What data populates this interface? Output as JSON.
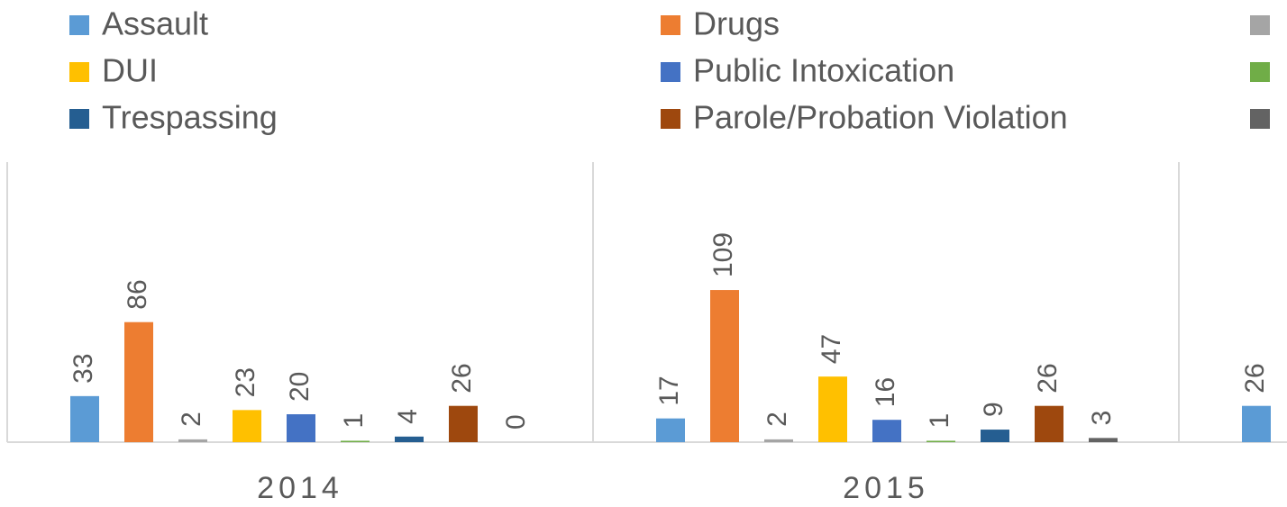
{
  "chart_data": {
    "type": "bar",
    "categories": [
      "2014",
      "2015",
      null
    ],
    "series": [
      {
        "name": "Assault",
        "color": "#5b9bd5",
        "values": [
          33,
          17,
          26
        ]
      },
      {
        "name": "Drugs",
        "color": "#ed7d31",
        "values": [
          86,
          109,
          null
        ]
      },
      {
        "name": null,
        "color": "#a5a5a5",
        "values": [
          2,
          2,
          null
        ]
      },
      {
        "name": "DUI",
        "color": "#ffc000",
        "values": [
          23,
          47,
          null
        ]
      },
      {
        "name": "Public Intoxication",
        "color": "#4472c4",
        "values": [
          20,
          16,
          null
        ]
      },
      {
        "name": null,
        "color": "#70ad47",
        "values": [
          1,
          1,
          null
        ]
      },
      {
        "name": "Trespassing",
        "color": "#255e91",
        "values": [
          4,
          9,
          null
        ]
      },
      {
        "name": "Parole/Probation Violation",
        "color": "#9e480e",
        "values": [
          26,
          26,
          null
        ]
      },
      {
        "name": null,
        "color": "#636363",
        "values": [
          0,
          3,
          null
        ]
      }
    ],
    "legend": "top"
  }
}
